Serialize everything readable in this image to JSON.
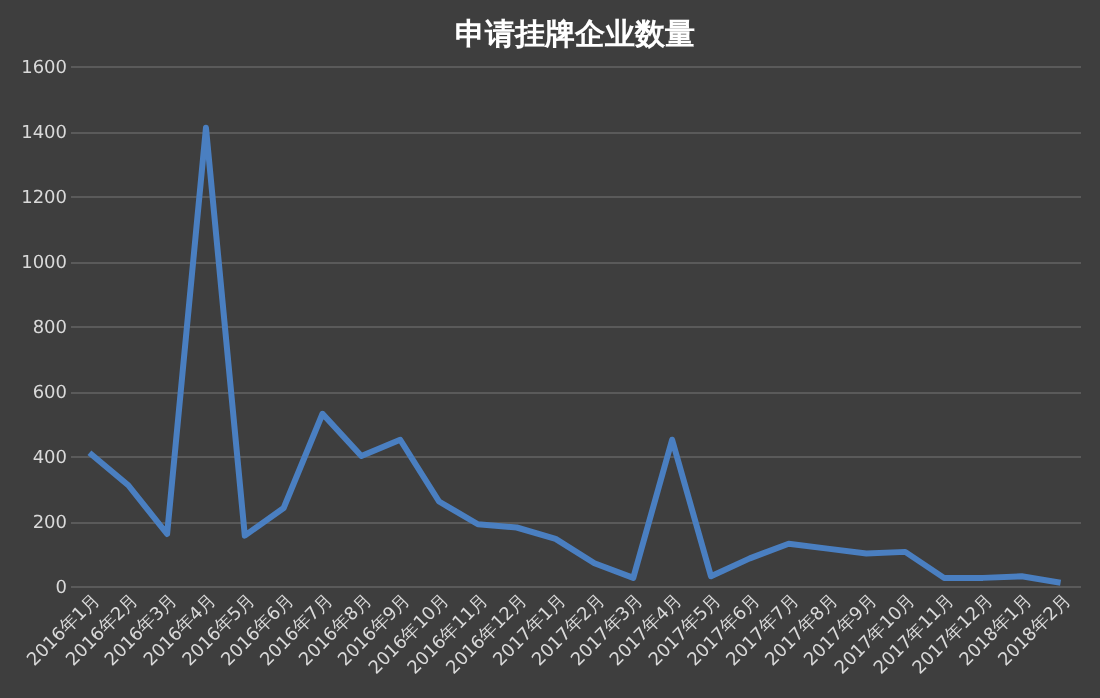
{
  "chart_data": {
    "type": "line",
    "title": "申请挂牌企业数量",
    "categories": [
      "2016年1月",
      "2016年2月",
      "2016年3月",
      "2016年4月",
      "2016年5月",
      "2016年6月",
      "2016年7月",
      "2016年8月",
      "2016年9月",
      "2016年10月",
      "2016年11月",
      "2016年12月",
      "2017年1月",
      "2017年2月",
      "2017年3月",
      "2017年4月",
      "2017年5月",
      "2017年6月",
      "2017年7月",
      "2017年8月",
      "2017年9月",
      "2017年10月",
      "2017年11月",
      "2017年12月",
      "2018年1月",
      "2018年2月"
    ],
    "series": [
      {
        "color": "#4a7fc1",
        "values": [
          410,
          310,
          160,
          1410,
          155,
          240,
          530,
          400,
          450,
          260,
          190,
          180,
          145,
          70,
          25,
          450,
          30,
          85,
          130,
          115,
          100,
          105,
          25,
          25,
          30,
          10
        ]
      }
    ],
    "ylim": [
      0,
      1600
    ],
    "yticks": [
      0,
      200,
      400,
      600,
      800,
      1000,
      1200,
      1400,
      1600
    ],
    "grid": "y",
    "marker": "none",
    "line_style": "solid"
  }
}
